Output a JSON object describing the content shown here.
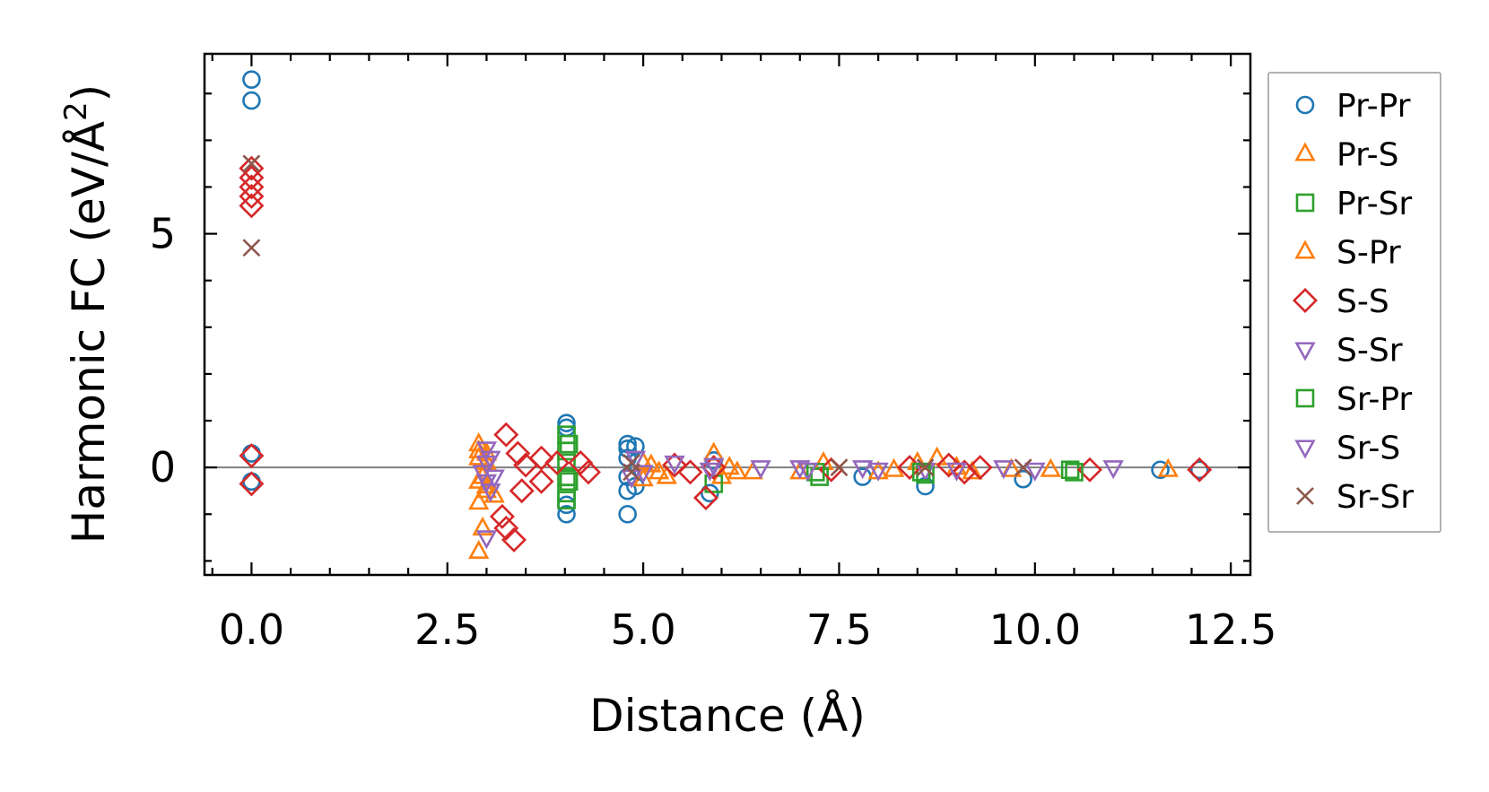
{
  "chart_data": {
    "type": "scatter",
    "xlabel": "Distance (Å)",
    "ylabel_main": "Harmonic FC (eV/Å",
    "ylabel_sup": "2",
    "ylabel_close": ")",
    "xlim": [
      -0.6,
      12.75
    ],
    "ylim": [
      -2.3,
      8.85
    ],
    "xticks": [
      0.0,
      2.5,
      5.0,
      7.5,
      10.0,
      12.5
    ],
    "xtick_labels": [
      "0.0",
      "2.5",
      "5.0",
      "7.5",
      "10.0",
      "12.5"
    ],
    "yticks": [
      0,
      5
    ],
    "ytick_labels": [
      "0",
      "5"
    ],
    "zero_line": true,
    "legend_position": "right-outside",
    "series": [
      {
        "name": "Pr-Pr",
        "marker": "circle",
        "color": "#1f77b4",
        "points": [
          [
            0,
            8.3
          ],
          [
            0,
            7.85
          ],
          [
            0,
            0.3
          ],
          [
            0,
            -0.3
          ],
          [
            4.02,
            0.95
          ],
          [
            4.02,
            0.85
          ],
          [
            4.02,
            -0.8
          ],
          [
            4.02,
            -1.0
          ],
          [
            4.8,
            0.5
          ],
          [
            4.8,
            0.4
          ],
          [
            4.8,
            0.2
          ],
          [
            4.8,
            -0.2
          ],
          [
            4.8,
            -0.5
          ],
          [
            4.8,
            -1.0
          ],
          [
            4.9,
            0.45
          ],
          [
            4.9,
            -0.4
          ],
          [
            5.85,
            -0.55
          ],
          [
            5.9,
            0.15
          ],
          [
            7.8,
            -0.2
          ],
          [
            8.6,
            -0.4
          ],
          [
            9.85,
            -0.25
          ],
          [
            11.6,
            -0.05
          ],
          [
            12.1,
            -0.05
          ]
        ]
      },
      {
        "name": "Pr-S",
        "marker": "triangle-up",
        "color": "#ff7f0e",
        "points": [
          [
            2.9,
            0.5
          ],
          [
            2.9,
            0.2
          ],
          [
            2.9,
            -0.3
          ],
          [
            2.9,
            -0.75
          ],
          [
            2.9,
            -1.8
          ],
          [
            2.95,
            -1.3
          ],
          [
            3.0,
            0.1
          ],
          [
            3.0,
            -0.5
          ],
          [
            3.1,
            -0.6
          ],
          [
            5.0,
            0.1
          ],
          [
            5.0,
            -0.25
          ],
          [
            5.2,
            -0.1
          ],
          [
            5.9,
            0.3
          ],
          [
            6.0,
            -0.2
          ],
          [
            6.2,
            -0.1
          ],
          [
            6.4,
            -0.1
          ],
          [
            7.0,
            -0.1
          ],
          [
            7.3,
            0.1
          ],
          [
            8.0,
            -0.1
          ],
          [
            8.5,
            0.1
          ],
          [
            8.75,
            0.2
          ],
          [
            9.2,
            -0.1
          ],
          [
            9.7,
            -0.05
          ],
          [
            10.2,
            -0.05
          ],
          [
            11.7,
            -0.05
          ]
        ]
      },
      {
        "name": "Pr-Sr",
        "marker": "square",
        "color": "#2ca02c",
        "points": [
          [
            4.02,
            0.7
          ],
          [
            4.02,
            0.35
          ],
          [
            4.02,
            0.1
          ],
          [
            4.02,
            -0.2
          ],
          [
            4.02,
            -0.55
          ],
          [
            5.9,
            -0.35
          ],
          [
            7.25,
            -0.2
          ],
          [
            8.6,
            -0.15
          ],
          [
            10.45,
            -0.05
          ]
        ]
      },
      {
        "name": "S-Pr",
        "marker": "triangle-up",
        "color": "#ff7f0e",
        "points": [
          [
            2.9,
            0.35
          ],
          [
            3.0,
            0.3
          ],
          [
            3.0,
            -0.4
          ],
          [
            2.95,
            -0.2
          ],
          [
            5.1,
            0.05
          ],
          [
            5.3,
            -0.2
          ],
          [
            6.1,
            0.0
          ],
          [
            8.2,
            -0.05
          ],
          [
            9.0,
            0.0
          ]
        ]
      },
      {
        "name": "S-S",
        "marker": "diamond",
        "color": "#d62728",
        "points": [
          [
            0,
            6.4
          ],
          [
            0,
            6.2
          ],
          [
            0,
            6.0
          ],
          [
            0,
            5.8
          ],
          [
            0,
            5.6
          ],
          [
            0,
            0.25
          ],
          [
            0,
            -0.35
          ],
          [
            3.25,
            0.7
          ],
          [
            3.2,
            -1.05
          ],
          [
            3.25,
            -1.3
          ],
          [
            3.35,
            -1.55
          ],
          [
            3.4,
            0.3
          ],
          [
            3.45,
            -0.5
          ],
          [
            3.5,
            0.05
          ],
          [
            3.7,
            0.2
          ],
          [
            3.7,
            -0.3
          ],
          [
            3.9,
            0.1
          ],
          [
            4.2,
            0.1
          ],
          [
            4.3,
            -0.1
          ],
          [
            5.4,
            0.05
          ],
          [
            5.6,
            -0.1
          ],
          [
            5.8,
            -0.65
          ],
          [
            5.9,
            0.0
          ],
          [
            7.4,
            -0.05
          ],
          [
            8.4,
            0.0
          ],
          [
            8.9,
            0.05
          ],
          [
            9.1,
            -0.1
          ],
          [
            9.3,
            0.0
          ],
          [
            10.7,
            -0.05
          ],
          [
            12.1,
            -0.05
          ]
        ]
      },
      {
        "name": "S-Sr",
        "marker": "triangle-down",
        "color": "#9467bd",
        "points": [
          [
            3.0,
            0.4
          ],
          [
            3.0,
            0.1
          ],
          [
            3.0,
            -0.3
          ],
          [
            3.05,
            -0.5
          ],
          [
            3.0,
            -1.5
          ],
          [
            4.9,
            0.2
          ],
          [
            5.0,
            -0.1
          ],
          [
            5.4,
            0.1
          ],
          [
            5.9,
            0.05
          ],
          [
            6.5,
            0.0
          ],
          [
            7.0,
            0.0
          ],
          [
            7.8,
            0.0
          ],
          [
            8.6,
            -0.05
          ],
          [
            9.6,
            0.0
          ],
          [
            11.0,
            0.0
          ]
        ]
      },
      {
        "name": "Sr-Pr",
        "marker": "square",
        "color": "#2ca02c",
        "points": [
          [
            4.05,
            0.5
          ],
          [
            4.05,
            -0.3
          ],
          [
            4.02,
            -0.7
          ],
          [
            7.2,
            -0.1
          ],
          [
            8.55,
            -0.1
          ],
          [
            10.5,
            -0.1
          ]
        ]
      },
      {
        "name": "Sr-S",
        "marker": "triangle-down",
        "color": "#9467bd",
        "points": [
          [
            3.05,
            0.2
          ],
          [
            3.1,
            -0.2
          ],
          [
            2.95,
            -0.1
          ],
          [
            4.85,
            -0.2
          ],
          [
            5.85,
            -0.05
          ],
          [
            7.1,
            -0.05
          ],
          [
            8.0,
            -0.05
          ],
          [
            9.0,
            -0.05
          ],
          [
            10.0,
            -0.05
          ]
        ]
      },
      {
        "name": "Sr-Sr",
        "marker": "x",
        "color": "#8c564b",
        "points": [
          [
            0,
            6.5
          ],
          [
            0,
            4.7
          ],
          [
            4.85,
            0.1
          ],
          [
            4.85,
            -0.1
          ],
          [
            7.5,
            0.0
          ],
          [
            8.6,
            0.0
          ],
          [
            9.85,
            0.0
          ]
        ]
      }
    ]
  }
}
